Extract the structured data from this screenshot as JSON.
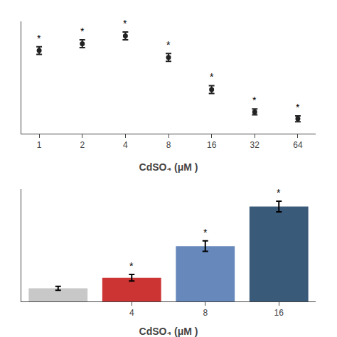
{
  "chart_data": [
    {
      "type": "scatter",
      "categories": [
        "1",
        "2",
        "4",
        "8",
        "16",
        "32",
        "64"
      ],
      "values": [
        85,
        92,
        100,
        78,
        45,
        22,
        15
      ],
      "yerr": [
        4,
        4,
        4,
        4,
        4,
        3,
        3
      ],
      "color": "#222222",
      "marker": "circle",
      "xlabel": "CdSO₄ (μM )",
      "ylim": [
        0,
        115
      ],
      "yticks": [],
      "tick_labels": "x",
      "grid": false,
      "annotations": [
        {
          "text": "*",
          "x": 0
        },
        {
          "text": "*",
          "x": 1
        },
        {
          "text": "*",
          "x": 2
        },
        {
          "text": "*",
          "x": 3
        },
        {
          "text": "*",
          "x": 4
        },
        {
          "text": "*",
          "x": 5
        },
        {
          "text": "*",
          "x": 6
        }
      ]
    },
    {
      "type": "bar",
      "categories": [
        null,
        "4",
        "8",
        "16"
      ],
      "values": [
        10,
        18,
        42,
        72
      ],
      "yerr": [
        1.5,
        2.5,
        4,
        4
      ],
      "colors": [
        "#c8c8c8",
        "#cc3333",
        "#6688bb",
        "#3a5a7a"
      ],
      "xlabel": "CdSO₄ (μM )",
      "ylim": [
        0,
        85
      ],
      "yticks": [],
      "tick_labels": "x",
      "grid": false,
      "annotations": [
        {
          "text": "*",
          "x": 1
        },
        {
          "text": "*",
          "x": 2
        },
        {
          "text": "*",
          "x": 3
        }
      ]
    }
  ]
}
